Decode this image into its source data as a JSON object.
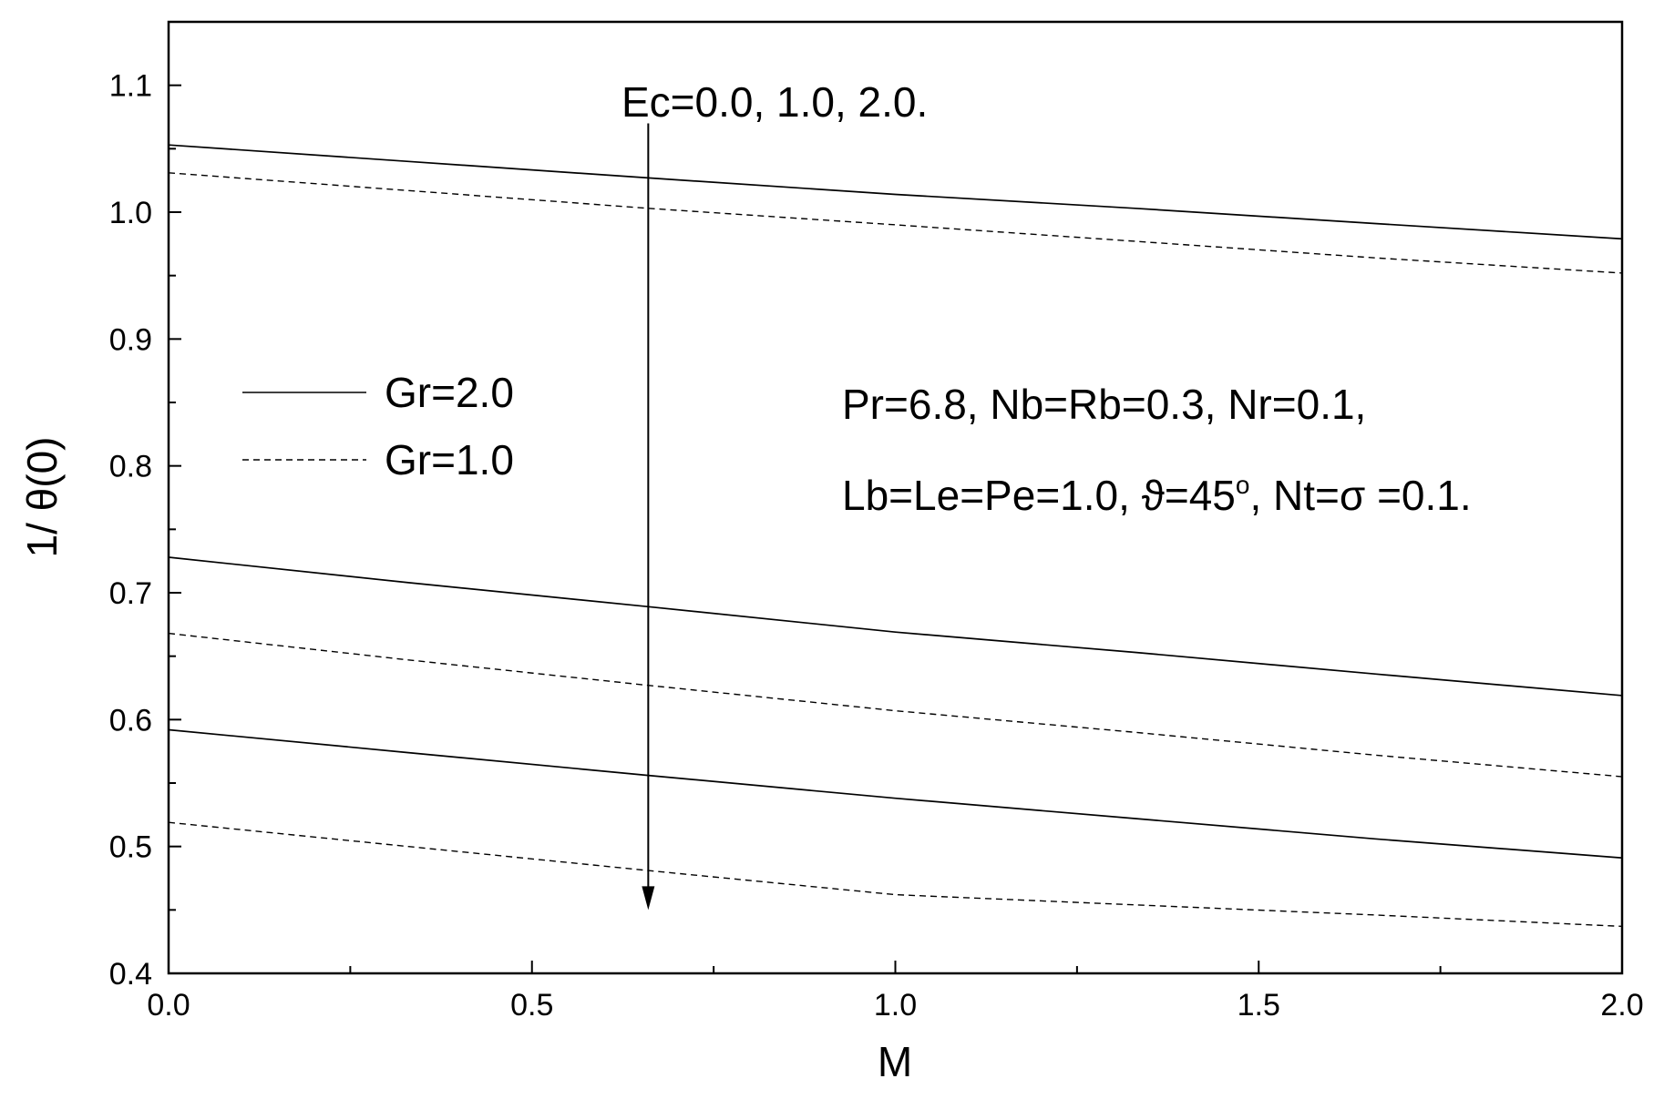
{
  "chart_data": {
    "type": "line",
    "title": "",
    "xlabel": "M",
    "ylabel": "1/ θ(0)",
    "xlim": [
      0.0,
      2.0
    ],
    "ylim": [
      0.4,
      1.15
    ],
    "x_ticks": [
      0.0,
      0.5,
      1.0,
      1.5,
      2.0
    ],
    "x_tick_labels": [
      "0.0",
      "0.5",
      "1.0",
      "1.5",
      "2.0"
    ],
    "y_ticks": [
      0.4,
      0.5,
      0.6,
      0.7,
      0.8,
      0.9,
      1.0,
      1.1
    ],
    "y_tick_labels": [
      "0.4",
      "0.5",
      "0.6",
      "0.7",
      "0.8",
      "0.9",
      "1.0",
      "1.1"
    ],
    "grid": false,
    "legend_position": "left",
    "legend": [
      {
        "label": "Gr=2.0",
        "style": "solid"
      },
      {
        "label": "Gr=1.0",
        "style": "dashed"
      }
    ],
    "annotations": {
      "arrow_label": "Ec=0.0, 1.0, 2.0.",
      "params_line1": "Pr=6.8, Nb=Rb=0.3, Nr=0.1,",
      "params_line2_prefix": "Lb=Le=Pe=1.0, ",
      "params_theta": "ϑ",
      "params_line2_mid": "=45",
      "params_degree": "o",
      "params_line2_suffix": ", Nt=σ =0.1."
    },
    "arrow": {
      "x": 0.66,
      "y_start": 1.07,
      "y_end": 0.45
    },
    "series": [
      {
        "style": "solid",
        "x": [
          0.0,
          0.33,
          0.66,
          1.0,
          1.33,
          1.66,
          2.0
        ],
        "y": [
          1.053,
          1.04,
          1.027,
          1.014,
          1.003,
          0.991,
          0.979
        ]
      },
      {
        "style": "dashed",
        "x": [
          0.0,
          0.33,
          0.66,
          1.0,
          1.33,
          1.66,
          2.0
        ],
        "y": [
          1.031,
          1.017,
          1.003,
          0.99,
          0.977,
          0.964,
          0.952
        ]
      },
      {
        "style": "solid",
        "x": [
          0.0,
          0.33,
          0.66,
          1.0,
          1.33,
          1.66,
          2.0
        ],
        "y": [
          0.728,
          0.708,
          0.689,
          0.669,
          0.653,
          0.636,
          0.619
        ]
      },
      {
        "style": "dashed",
        "x": [
          0.0,
          0.33,
          0.66,
          1.0,
          1.33,
          1.66,
          2.0
        ],
        "y": [
          0.668,
          0.647,
          0.627,
          0.607,
          0.59,
          0.572,
          0.555
        ]
      },
      {
        "style": "solid",
        "x": [
          0.0,
          0.33,
          0.66,
          1.0,
          1.33,
          1.66,
          2.0
        ],
        "y": [
          0.592,
          0.574,
          0.556,
          0.538,
          0.522,
          0.506,
          0.491
        ]
      },
      {
        "style": "dashed",
        "x": [
          0.0,
          0.33,
          0.66,
          1.0,
          1.33,
          1.66,
          2.0
        ],
        "y": [
          0.519,
          0.5,
          0.481,
          0.462,
          0.454,
          0.446,
          0.437
        ]
      }
    ],
    "colors": {
      "line": "#000000",
      "background": "#ffffff"
    }
  }
}
